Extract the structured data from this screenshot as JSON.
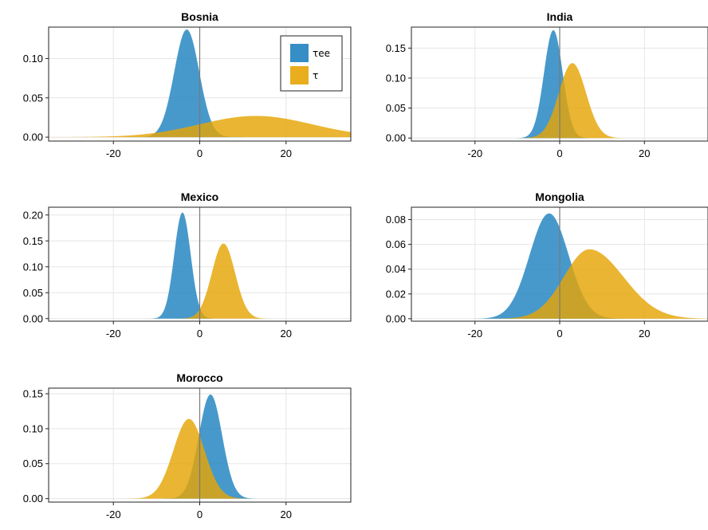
{
  "colors": {
    "tau_ee": "#1f82c0",
    "tau": "#e5a505",
    "zero_line": "#7a7a7a",
    "grid": "#e6e6e6"
  },
  "legend": {
    "placement": "top-right of first panel",
    "entries": [
      {
        "label": "τee",
        "color_key": "tau_ee"
      },
      {
        "label": "τ",
        "color_key": "tau"
      }
    ]
  },
  "chart_data": [
    {
      "type": "area",
      "title": "Bosnia",
      "xlim": [
        -35,
        35
      ],
      "ylim": [
        -0.005,
        0.14
      ],
      "xticks": [
        -20,
        0,
        20
      ],
      "yticks": [
        0.0,
        0.05,
        0.1
      ],
      "ytick_labels": [
        "0.00",
        "0.05",
        "0.10"
      ],
      "series": [
        {
          "name": "τee",
          "mean": -3,
          "sd": 2.9,
          "peak": 0.137
        },
        {
          "name": "τ",
          "mean": 13,
          "sd": 13,
          "peak": 0.027
        }
      ]
    },
    {
      "type": "area",
      "title": "India",
      "xlim": [
        -35,
        35
      ],
      "ylim": [
        -0.005,
        0.185
      ],
      "xticks": [
        -20,
        0,
        20
      ],
      "yticks": [
        0.0,
        0.05,
        0.1,
        0.15
      ],
      "ytick_labels": [
        "0.00",
        "0.05",
        "0.10",
        "0.15"
      ],
      "series": [
        {
          "name": "τee",
          "mean": -1.5,
          "sd": 2.2,
          "peak": 0.18
        },
        {
          "name": "τ",
          "mean": 3,
          "sd": 3.2,
          "peak": 0.125
        }
      ]
    },
    {
      "type": "area",
      "title": "Mexico",
      "xlim": [
        -35,
        35
      ],
      "ylim": [
        -0.005,
        0.215
      ],
      "xticks": [
        -20,
        0,
        20
      ],
      "yticks": [
        0.0,
        0.05,
        0.1,
        0.15,
        0.2
      ],
      "ytick_labels": [
        "0.00",
        "0.05",
        "0.10",
        "0.15",
        "0.20"
      ],
      "series": [
        {
          "name": "τee",
          "mean": -4,
          "sd": 1.9,
          "peak": 0.205
        },
        {
          "name": "τ",
          "mean": 5.5,
          "sd": 2.7,
          "peak": 0.145
        }
      ]
    },
    {
      "type": "area",
      "title": "Mongolia",
      "xlim": [
        -35,
        35
      ],
      "ylim": [
        -0.002,
        0.09
      ],
      "xticks": [
        -20,
        0,
        20
      ],
      "yticks": [
        0.0,
        0.02,
        0.04,
        0.06,
        0.08
      ],
      "ytick_labels": [
        "0.00",
        "0.02",
        "0.04",
        "0.06",
        "0.08"
      ],
      "series": [
        {
          "name": "τee",
          "mean": -2.5,
          "sd": 4.6,
          "peak": 0.085
        },
        {
          "name": "τ",
          "mean": 7,
          "sd_left": 6.0,
          "sd_right": 8.0,
          "peak": 0.056
        }
      ]
    },
    {
      "type": "area",
      "title": "Morocco",
      "xlim": [
        -35,
        35
      ],
      "ylim": [
        -0.005,
        0.158
      ],
      "xticks": [
        -20,
        0,
        20
      ],
      "yticks": [
        0.0,
        0.05,
        0.1,
        0.15
      ],
      "ytick_labels": [
        "0.00",
        "0.05",
        "0.10",
        "0.15"
      ],
      "series": [
        {
          "name": "τee",
          "mean": 2.5,
          "sd": 2.7,
          "peak": 0.149
        },
        {
          "name": "τ",
          "mean": -2.5,
          "sd": 3.6,
          "peak": 0.114
        }
      ]
    }
  ]
}
